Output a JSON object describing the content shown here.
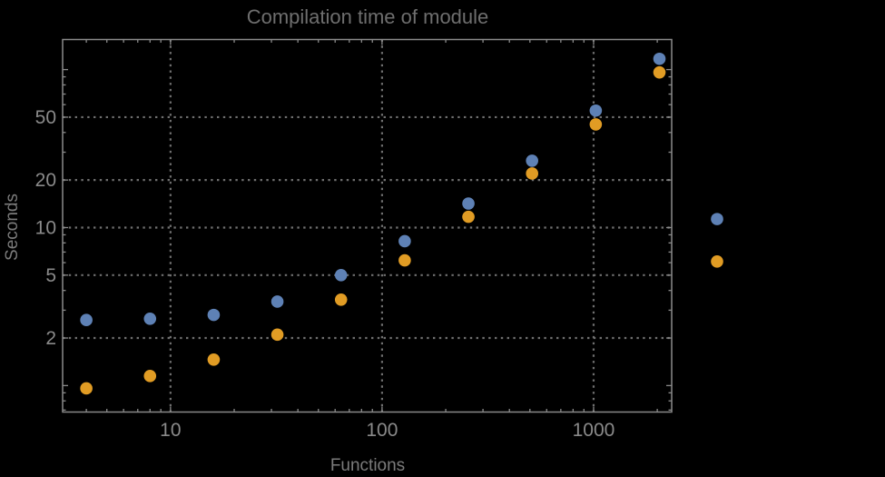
{
  "app": {
    "background_color": "#000000"
  },
  "chart_data": {
    "type": "scatter",
    "title": "Compilation time of module",
    "xlabel": "Functions",
    "ylabel": "Seconds",
    "x_scale": "log10",
    "y_scale": "log10",
    "xlim": [
      3.09,
      2340
    ],
    "ylim": [
      0.68,
      155
    ],
    "grid": "dotted gridlines at labeled major ticks, full frame with inward ticks on all four sides",
    "x_major_ticks": [
      10,
      100,
      1000
    ],
    "x_major_tick_labels": [
      "10",
      "100",
      "1000"
    ],
    "x_minor_ticks": [
      4,
      5,
      6,
      7,
      8,
      9,
      20,
      30,
      40,
      50,
      60,
      70,
      80,
      90,
      200,
      300,
      400,
      500,
      600,
      700,
      800,
      900,
      2000
    ],
    "y_major_ticks": [
      2,
      5,
      10,
      20,
      50
    ],
    "y_major_tick_labels": [
      "2",
      "5",
      "10",
      "20",
      "50"
    ],
    "y_unlabeled_major_ticks": [
      1,
      100
    ],
    "y_minor_ticks": [
      0.7,
      0.8,
      0.9,
      3,
      4,
      6,
      7,
      8,
      9,
      30,
      40,
      60,
      70,
      80,
      90
    ],
    "x": [
      4,
      8,
      16,
      32,
      64,
      128,
      256,
      512,
      1024,
      2048
    ],
    "series": [
      {
        "name": "series-blue",
        "color": "#5E81B5",
        "values": [
          2.6,
          2.65,
          2.8,
          3.4,
          5.0,
          8.2,
          14.2,
          26.5,
          55,
          117
        ]
      },
      {
        "name": "series-orange",
        "color": "#E19C24",
        "values": [
          0.96,
          1.15,
          1.46,
          2.1,
          3.5,
          6.2,
          11.7,
          22,
          45,
          96
        ]
      }
    ],
    "legend": {
      "position": "outside-right-middle",
      "entries": [
        {
          "label": "",
          "marker_color": "#5E81B5"
        },
        {
          "label": "",
          "marker_color": "#E19C24"
        }
      ]
    },
    "styles": {
      "frame_color": "#8a8a8a",
      "grid_color": "#6f6f6f",
      "tick_label_color": "#8a8a8a",
      "axis_label_color": "#7b7b7b",
      "title_color": "#6e6e6e",
      "point_radius_px": 6.8
    }
  }
}
